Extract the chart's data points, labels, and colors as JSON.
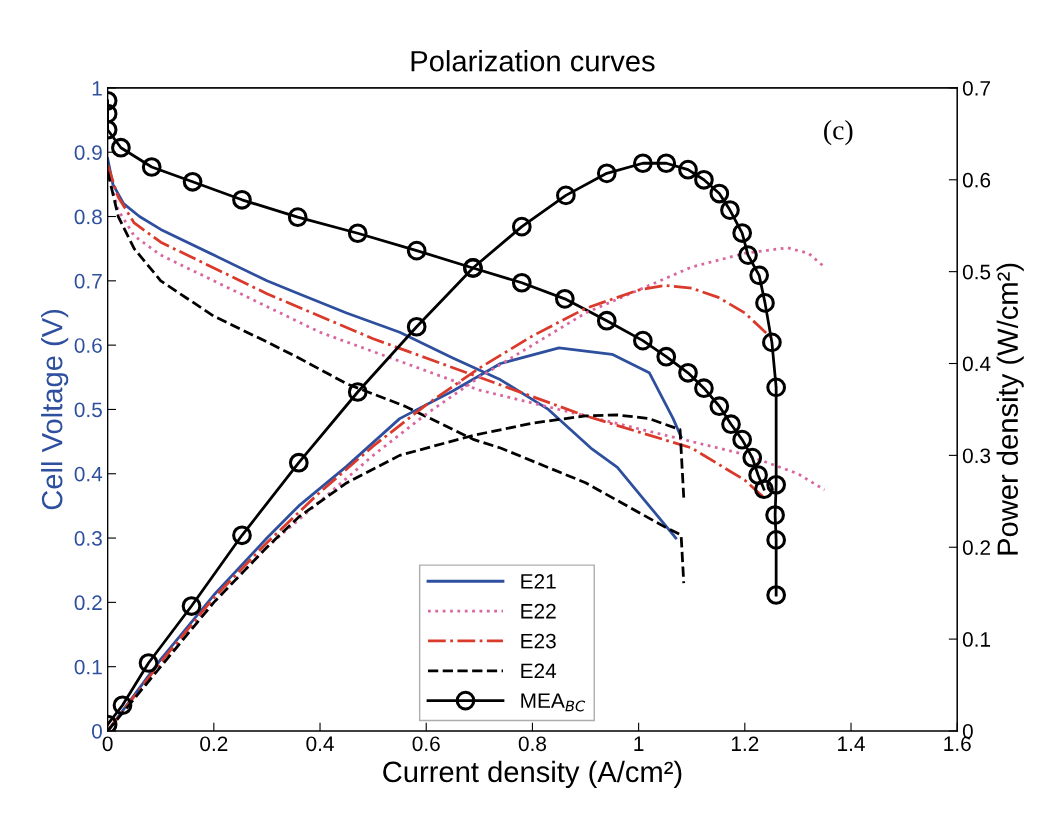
{
  "chart_data": {
    "type": "line",
    "title": "Polarization curves",
    "xlabel": "Current density (A/cm²)",
    "ylabel": "Cell Voltage (V)",
    "y2label": "Power density (W/cm²)",
    "annotations": [
      "(c)"
    ],
    "xlim": [
      0,
      1.6
    ],
    "xticks": [
      0,
      0.2,
      0.4,
      0.6,
      0.8,
      1,
      1.2,
      1.4,
      1.6
    ],
    "ylim": [
      0,
      1
    ],
    "yticks": [
      0,
      0.1,
      0.2,
      0.3,
      0.4,
      0.5,
      0.6,
      0.7,
      0.8,
      0.9,
      1
    ],
    "y2lim": [
      0,
      0.7
    ],
    "y2ticks": [
      0,
      0.1,
      0.2,
      0.3,
      0.4,
      0.5,
      0.6,
      0.7
    ],
    "grid": false,
    "legend": "bottom",
    "series": [
      {
        "name": "E21",
        "color": "#2e4f9e",
        "line_style": "solid",
        "marker": "none",
        "x": [
          0,
          0.01,
          0.03,
          0.06,
          0.1,
          0.2,
          0.3,
          0.36,
          0.45,
          0.55,
          0.65,
          0.74,
          0.83,
          0.91,
          0.96,
          1.0,
          1.05,
          1.07
        ],
        "values": [
          0.89,
          0.85,
          0.82,
          0.8,
          0.78,
          0.74,
          0.7,
          0.68,
          0.65,
          0.62,
          0.58,
          0.546,
          0.5,
          0.44,
          0.41,
          0.37,
          0.32,
          0.3
        ]
      },
      {
        "name": "E22",
        "color": "#d9669e",
        "line_style": "dotted",
        "marker": "none",
        "x": [
          0,
          0.02,
          0.05,
          0.1,
          0.2,
          0.3,
          0.4,
          0.5,
          0.6,
          0.7,
          0.8,
          0.9,
          1.0,
          1.1,
          1.2,
          1.3,
          1.35
        ],
        "values": [
          0.87,
          0.81,
          0.77,
          0.74,
          0.7,
          0.66,
          0.62,
          0.59,
          0.56,
          0.53,
          0.51,
          0.49,
          0.47,
          0.45,
          0.43,
          0.4,
          0.375
        ]
      },
      {
        "name": "E23",
        "color": "#d93a2b",
        "line_style": "dashdot",
        "marker": "none",
        "x": [
          0,
          0.02,
          0.05,
          0.1,
          0.2,
          0.3,
          0.4,
          0.5,
          0.6,
          0.7,
          0.8,
          0.9,
          1.0,
          1.1,
          1.2,
          1.24
        ],
        "values": [
          0.88,
          0.83,
          0.79,
          0.76,
          0.72,
          0.68,
          0.645,
          0.61,
          0.58,
          0.55,
          0.52,
          0.49,
          0.465,
          0.44,
          0.39,
          0.36
        ]
      },
      {
        "name": "E24",
        "color": "#000000",
        "line_style": "dashed",
        "marker": "none",
        "x": [
          0,
          0.02,
          0.05,
          0.1,
          0.2,
          0.3,
          0.36,
          0.45,
          0.56,
          0.69,
          0.74,
          0.9,
          1.05,
          1.08,
          1.085
        ],
        "values": [
          0.87,
          0.8,
          0.75,
          0.7,
          0.645,
          0.605,
          0.58,
          0.54,
          0.505,
          0.453,
          0.44,
          0.386,
          0.317,
          0.305,
          0.23
        ]
      },
      {
        "name": "MEA$_{BC}$",
        "color": "#000000",
        "line_style": "solid",
        "marker": "circle",
        "x": [
          0,
          0,
          0,
          0.025,
          0.083,
          0.16,
          0.253,
          0.358,
          0.471,
          0.582,
          0.688,
          0.78,
          0.861,
          0.94,
          1.008,
          1.052,
          1.093,
          1.123,
          1.152,
          1.174,
          1.195,
          1.214,
          1.225,
          1.236
        ],
        "values": [
          0.98,
          0.96,
          0.935,
          0.907,
          0.877,
          0.854,
          0.826,
          0.799,
          0.774,
          0.747,
          0.72,
          0.697,
          0.672,
          0.638,
          0.607,
          0.582,
          0.557,
          0.533,
          0.505,
          0.477,
          0.453,
          0.425,
          0.398,
          0.376
        ]
      },
      {
        "color": "#2e4f9e",
        "axis": "y2",
        "line_style": "solid",
        "marker": "none",
        "x": [
          0,
          0.1,
          0.2,
          0.3,
          0.36,
          0.45,
          0.55,
          0.65,
          0.74,
          0.85,
          0.95,
          1.02,
          1.065,
          1.08
        ],
        "values": [
          0,
          0.078,
          0.148,
          0.21,
          0.245,
          0.288,
          0.34,
          0.37,
          0.4,
          0.417,
          0.41,
          0.39,
          0.34,
          0.32
        ]
      },
      {
        "color": "#d9669e",
        "axis": "y2",
        "line_style": "dotted",
        "marker": "none",
        "x": [
          0,
          0.1,
          0.2,
          0.3,
          0.4,
          0.5,
          0.6,
          0.7,
          0.8,
          0.9,
          1.0,
          1.1,
          1.2,
          1.28,
          1.32,
          1.35
        ],
        "values": [
          0,
          0.072,
          0.14,
          0.2,
          0.25,
          0.3,
          0.345,
          0.385,
          0.42,
          0.455,
          0.48,
          0.505,
          0.52,
          0.526,
          0.52,
          0.505
        ]
      },
      {
        "color": "#d93a2b",
        "axis": "y2",
        "line_style": "dashdot",
        "marker": "none",
        "x": [
          0,
          0.1,
          0.2,
          0.3,
          0.4,
          0.5,
          0.6,
          0.7,
          0.8,
          0.9,
          1.0,
          1.05,
          1.1,
          1.15,
          1.2,
          1.248
        ],
        "values": [
          0,
          0.075,
          0.145,
          0.205,
          0.26,
          0.31,
          0.355,
          0.395,
          0.43,
          0.46,
          0.48,
          0.485,
          0.482,
          0.472,
          0.455,
          0.429
        ]
      },
      {
        "color": "#000000",
        "axis": "y2",
        "line_style": "dashed",
        "marker": "none",
        "x": [
          0,
          0.1,
          0.2,
          0.3,
          0.36,
          0.45,
          0.55,
          0.69,
          0.8,
          0.9,
          0.96,
          1.02,
          1.078,
          1.085
        ],
        "values": [
          0,
          0.07,
          0.14,
          0.2,
          0.233,
          0.27,
          0.3,
          0.322,
          0.335,
          0.343,
          0.344,
          0.34,
          0.328,
          0.254
        ]
      },
      {
        "color": "#000000",
        "axis": "y2",
        "line_style": "solid",
        "marker": "circle",
        "x": [
          0,
          0.028,
          0.077,
          0.158,
          0.253,
          0.36,
          0.471,
          0.582,
          0.688,
          0.78,
          0.863,
          0.94,
          1.008,
          1.052,
          1.093,
          1.123,
          1.152,
          1.172,
          1.195,
          1.206,
          1.227,
          1.238,
          1.251,
          1.259,
          1.259,
          1.257,
          1.259,
          1.259
        ],
        "values": [
          0.007,
          0.028,
          0.074,
          0.136,
          0.213,
          0.292,
          0.369,
          0.44,
          0.504,
          0.549,
          0.583,
          0.607,
          0.618,
          0.618,
          0.611,
          0.6,
          0.585,
          0.567,
          0.542,
          0.518,
          0.496,
          0.466,
          0.423,
          0.374,
          0.268,
          0.235,
          0.208,
          0.148
        ]
      }
    ]
  }
}
